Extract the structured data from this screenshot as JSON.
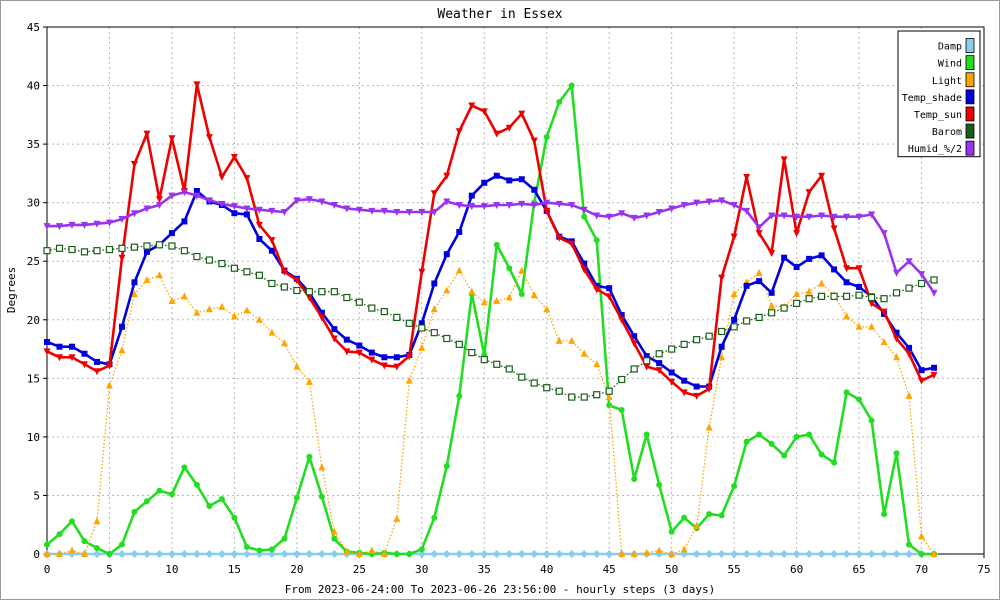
{
  "chart_data": {
    "type": "line",
    "title": "Weather in Essex",
    "xlabel": "From 2023-06-24:00 To 2023-06-26 23:56:00 - hourly steps (3 days)",
    "ylabel": "Degrees",
    "xlim": [
      0,
      75
    ],
    "ylim": [
      0,
      45
    ],
    "xticks": [
      0,
      5,
      10,
      15,
      20,
      25,
      30,
      35,
      40,
      45,
      50,
      55,
      60,
      65,
      70,
      75
    ],
    "yticks": [
      0,
      5,
      10,
      15,
      20,
      25,
      30,
      35,
      40,
      45
    ],
    "grid": true,
    "legend_position": "top-right",
    "series": [
      {
        "name": "Damp",
        "color": "#87ceeb",
        "marker": "diamond",
        "style": "solid",
        "x": [
          0,
          1,
          2,
          3,
          4,
          5,
          6,
          7,
          8,
          9,
          10,
          11,
          12,
          13,
          14,
          15,
          16,
          17,
          18,
          19,
          20,
          21,
          22,
          23,
          24,
          25,
          26,
          27,
          28,
          29,
          30,
          31,
          32,
          33,
          34,
          35,
          36,
          37,
          38,
          39,
          40,
          41,
          42,
          43,
          44,
          45,
          46,
          47,
          48,
          49,
          50,
          51,
          52,
          53,
          54,
          55,
          56,
          57,
          58,
          59,
          60,
          61,
          62,
          63,
          64,
          65,
          66,
          67,
          68,
          69,
          70,
          71
        ],
        "y": [
          0,
          0,
          0,
          0,
          0,
          0,
          0,
          0,
          0,
          0,
          0,
          0,
          0,
          0,
          0,
          0,
          0,
          0,
          0,
          0,
          0,
          0,
          0,
          0,
          0,
          0,
          0,
          0,
          0,
          0,
          0,
          0,
          0,
          0,
          0,
          0,
          0,
          0,
          0,
          0,
          0,
          0,
          0,
          0,
          0,
          0,
          0,
          0,
          0,
          0,
          0,
          0,
          0,
          0,
          0,
          0,
          0,
          0,
          0,
          0,
          0,
          0,
          0,
          0,
          0,
          0,
          0,
          0,
          0,
          0,
          0,
          0
        ]
      },
      {
        "name": "Wind",
        "color": "#22dd22",
        "marker": "circle",
        "style": "solid",
        "x": [
          0,
          1,
          2,
          3,
          4,
          5,
          6,
          7,
          8,
          9,
          10,
          11,
          12,
          13,
          14,
          15,
          16,
          17,
          18,
          19,
          20,
          21,
          22,
          23,
          24,
          25,
          26,
          27,
          28,
          29,
          30,
          31,
          32,
          33,
          34,
          35,
          36,
          37,
          38,
          39,
          40,
          41,
          42,
          43,
          44,
          45,
          46,
          47,
          48,
          49,
          50,
          51,
          52,
          53,
          54,
          55,
          56,
          57,
          58,
          59,
          60,
          61,
          62,
          63,
          64,
          65,
          66,
          67,
          68,
          69,
          70,
          71
        ],
        "y": [
          0.8,
          1.7,
          2.8,
          1.1,
          0.5,
          0,
          0.8,
          3.6,
          4.5,
          5.4,
          5.1,
          7.4,
          5.9,
          4.1,
          4.7,
          3.1,
          0.6,
          0.3,
          0.4,
          1.3,
          4.8,
          8.3,
          4.9,
          1.3,
          0.2,
          0.1,
          0,
          0.1,
          0,
          0,
          0.4,
          3.1,
          7.5,
          13.5,
          22.2,
          17,
          26.4,
          24.4,
          22.2,
          30,
          35.6,
          38.6,
          40,
          28.8,
          26.8,
          12.7,
          12.3,
          6.4,
          10.2,
          5.9,
          1.9,
          3.1,
          2.2,
          3.4,
          3.3,
          5.8,
          9.6,
          10.2,
          9.4,
          8.4,
          10,
          10.2,
          8.5,
          7.8,
          13.8,
          13.2,
          11.4,
          3.4,
          8.6,
          0.8,
          0,
          0
        ]
      },
      {
        "name": "Light",
        "color": "#ffa500",
        "marker": "triangle",
        "style": "dotted",
        "x": [
          0,
          1,
          2,
          3,
          4,
          5,
          6,
          7,
          8,
          9,
          10,
          11,
          12,
          13,
          14,
          15,
          16,
          17,
          18,
          19,
          20,
          21,
          22,
          23,
          24,
          25,
          26,
          27,
          28,
          29,
          30,
          31,
          32,
          33,
          34,
          35,
          36,
          37,
          38,
          39,
          40,
          41,
          42,
          43,
          44,
          45,
          46,
          47,
          48,
          49,
          50,
          51,
          52,
          53,
          54,
          55,
          56,
          57,
          58,
          59,
          60,
          61,
          62,
          63,
          64,
          65,
          66,
          67,
          68,
          69,
          70,
          71
        ],
        "y": [
          0,
          0,
          0.3,
          0,
          2.8,
          14.4,
          17.4,
          22.2,
          23.4,
          23.8,
          21.6,
          22,
          20.6,
          20.9,
          21.1,
          20.3,
          20.8,
          20,
          18.9,
          18,
          16,
          14.7,
          7.4,
          1.9,
          0.2,
          0,
          0.3,
          0,
          3,
          14.8,
          17.6,
          20.9,
          22.5,
          24.2,
          22.4,
          21.5,
          21.6,
          21.9,
          24.2,
          22.1,
          20.9,
          18.2,
          18.2,
          17.1,
          16.2,
          13.4,
          0,
          0,
          0.1,
          0.3,
          0,
          0.4,
          2.4,
          10.8,
          16.8,
          22.2,
          23.2,
          24,
          21.2,
          21.1,
          22.2,
          22.4,
          23.1,
          22.1,
          20.3,
          19.4,
          19.4,
          18.1,
          16.8,
          13.5,
          1.5,
          0
        ]
      },
      {
        "name": "Temp_shade",
        "color": "#0000dd",
        "marker": "square",
        "style": "solid",
        "x": [
          0,
          1,
          2,
          3,
          4,
          5,
          6,
          7,
          8,
          9,
          10,
          11,
          12,
          13,
          14,
          15,
          16,
          17,
          18,
          19,
          20,
          21,
          22,
          23,
          24,
          25,
          26,
          27,
          28,
          29,
          30,
          31,
          32,
          33,
          34,
          35,
          36,
          37,
          38,
          39,
          40,
          41,
          42,
          43,
          44,
          45,
          46,
          47,
          48,
          49,
          50,
          51,
          52,
          53,
          54,
          55,
          56,
          57,
          58,
          59,
          60,
          61,
          62,
          63,
          64,
          65,
          66,
          67,
          68,
          69,
          70,
          71
        ],
        "y": [
          18.1,
          17.7,
          17.7,
          17.1,
          16.4,
          16.2,
          19.4,
          23.2,
          25.8,
          26.4,
          27.4,
          28.4,
          31,
          30.1,
          29.8,
          29.1,
          29,
          26.9,
          25.9,
          24.2,
          23.5,
          22.3,
          20.6,
          19.2,
          18.3,
          17.8,
          17.2,
          16.8,
          16.8,
          17,
          19.7,
          23.1,
          25.6,
          27.5,
          30.6,
          31.7,
          32.3,
          31.9,
          32,
          31.1,
          29.3,
          27.1,
          26.7,
          24.8,
          22.9,
          22.7,
          20.4,
          18.6,
          16.9,
          16.3,
          15.5,
          14.8,
          14.3,
          14.3,
          17.7,
          20,
          22.9,
          23.3,
          22.3,
          25.3,
          24.5,
          25.2,
          25.5,
          24.3,
          23.2,
          22.8,
          22,
          20.5,
          18.9,
          17.6,
          15.7,
          15.9
        ]
      },
      {
        "name": "Temp_sun",
        "color": "#ee0000",
        "marker": "triangle-down",
        "style": "solid",
        "x": [
          0,
          1,
          2,
          3,
          4,
          5,
          6,
          7,
          8,
          9,
          10,
          11,
          12,
          13,
          14,
          15,
          16,
          17,
          18,
          19,
          20,
          21,
          22,
          23,
          24,
          25,
          26,
          27,
          28,
          29,
          30,
          31,
          32,
          33,
          34,
          35,
          36,
          37,
          38,
          39,
          40,
          41,
          42,
          43,
          44,
          45,
          46,
          47,
          48,
          49,
          50,
          51,
          52,
          53,
          54,
          55,
          56,
          57,
          58,
          59,
          60,
          61,
          62,
          63,
          64,
          65,
          66,
          67,
          68,
          69,
          70,
          71
        ],
        "y": [
          17.3,
          16.8,
          16.8,
          16.2,
          15.6,
          16.1,
          25.3,
          33.3,
          35.9,
          30.3,
          35.5,
          31,
          40.1,
          35.6,
          32.2,
          33.9,
          32.1,
          28.1,
          26.8,
          24.1,
          23.4,
          21.9,
          20.2,
          18.4,
          17.3,
          17.2,
          16.6,
          16.1,
          16,
          16.9,
          24.1,
          30.8,
          32.3,
          36.1,
          38.3,
          37.8,
          35.9,
          36.4,
          37.6,
          35.3,
          29.3,
          27,
          26.5,
          24.3,
          22.6,
          22,
          20,
          18,
          16,
          15.7,
          14.7,
          13.8,
          13.5,
          14.1,
          23.6,
          27.1,
          32.2,
          27.4,
          25.7,
          33.7,
          27.4,
          30.9,
          32.3,
          27.8,
          24.4,
          24.4,
          21.4,
          20.7,
          18.4,
          17.1,
          14.8,
          15.3
        ]
      },
      {
        "name": "Barom",
        "color": "#1a5e1a",
        "marker": "square-open",
        "style": "dotted",
        "x": [
          0,
          1,
          2,
          3,
          4,
          5,
          6,
          7,
          8,
          9,
          10,
          11,
          12,
          13,
          14,
          15,
          16,
          17,
          18,
          19,
          20,
          21,
          22,
          23,
          24,
          25,
          26,
          27,
          28,
          29,
          30,
          31,
          32,
          33,
          34,
          35,
          36,
          37,
          38,
          39,
          40,
          41,
          42,
          43,
          44,
          45,
          46,
          47,
          48,
          49,
          50,
          51,
          52,
          53,
          54,
          55,
          56,
          57,
          58,
          59,
          60,
          61,
          62,
          63,
          64,
          65,
          66,
          67,
          68,
          69,
          70,
          71
        ],
        "y": [
          25.9,
          26.1,
          26,
          25.8,
          25.9,
          26,
          26.1,
          26.2,
          26.3,
          26.4,
          26.3,
          25.9,
          25.4,
          25.1,
          24.8,
          24.4,
          24.1,
          23.8,
          23.1,
          22.8,
          22.5,
          22.4,
          22.4,
          22.4,
          21.9,
          21.5,
          21,
          20.7,
          20.2,
          19.7,
          19.3,
          18.9,
          18.4,
          17.9,
          17.2,
          16.6,
          16.2,
          15.8,
          15.1,
          14.6,
          14.2,
          13.9,
          13.4,
          13.4,
          13.6,
          13.9,
          14.9,
          15.8,
          16.5,
          17.1,
          17.5,
          17.9,
          18.3,
          18.6,
          19,
          19.4,
          19.9,
          20.2,
          20.6,
          21,
          21.4,
          21.8,
          22,
          22,
          22,
          22.1,
          21.9,
          21.8,
          22.3,
          22.7,
          23.1,
          23.4
        ]
      },
      {
        "name": "Humid_%/2",
        "color": "#9933ee",
        "marker": "triangle-down",
        "style": "solid",
        "x": [
          0,
          1,
          2,
          3,
          4,
          5,
          6,
          7,
          8,
          9,
          10,
          11,
          12,
          13,
          14,
          15,
          16,
          17,
          18,
          19,
          20,
          21,
          22,
          23,
          24,
          25,
          26,
          27,
          28,
          29,
          30,
          31,
          32,
          33,
          34,
          35,
          36,
          37,
          38,
          39,
          40,
          41,
          42,
          43,
          44,
          45,
          46,
          47,
          48,
          49,
          50,
          51,
          52,
          53,
          54,
          55,
          56,
          57,
          58,
          59,
          60,
          61,
          62,
          63,
          64,
          65,
          66,
          67,
          68,
          69,
          70,
          71
        ],
        "y": [
          28,
          28,
          28.1,
          28.1,
          28.2,
          28.3,
          28.6,
          29.1,
          29.5,
          29.8,
          30.6,
          30.9,
          30.6,
          30.2,
          29.9,
          29.7,
          29.5,
          29.4,
          29.3,
          29.2,
          30.2,
          30.3,
          30.1,
          29.8,
          29.5,
          29.4,
          29.3,
          29.3,
          29.2,
          29.2,
          29.2,
          29.2,
          30.1,
          29.8,
          29.7,
          29.7,
          29.8,
          29.8,
          29.9,
          29.8,
          30,
          29.9,
          29.8,
          29.4,
          28.9,
          28.8,
          29.1,
          28.7,
          28.9,
          29.2,
          29.5,
          29.8,
          30,
          30.1,
          30.2,
          29.8,
          29.3,
          27.9,
          28.9,
          28.9,
          28.8,
          28.8,
          28.9,
          28.8,
          28.8,
          28.8,
          29,
          27.4,
          24,
          25,
          23.9,
          22.3
        ]
      }
    ]
  }
}
